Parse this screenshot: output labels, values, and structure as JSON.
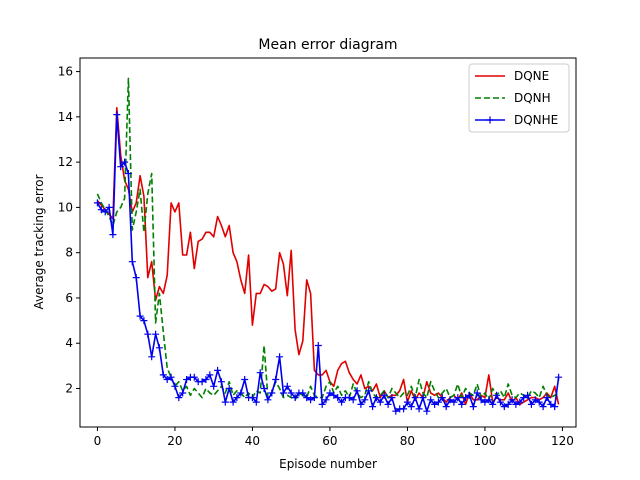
{
  "chart_data": {
    "type": "line",
    "title": "Mean error diagram",
    "xlabel": "Episode number",
    "ylabel": "Average tracking error",
    "xlim": [
      -4.5,
      123.5
    ],
    "ylim": [
      0.3,
      16.6
    ],
    "xticks": [
      0,
      20,
      40,
      60,
      80,
      100,
      120
    ],
    "yticks": [
      2,
      4,
      6,
      8,
      10,
      12,
      14,
      16
    ],
    "grid": false,
    "legend_position": "top-right",
    "series": [
      {
        "name": "DQNE",
        "color": "#e00000",
        "style": "solid",
        "marker": "none",
        "x": [
          0,
          1,
          2,
          3,
          4,
          5,
          6,
          7,
          8,
          9,
          10,
          11,
          12,
          13,
          14,
          15,
          16,
          17,
          18,
          19,
          20,
          21,
          22,
          23,
          24,
          25,
          26,
          27,
          28,
          29,
          30,
          31,
          32,
          33,
          34,
          35,
          36,
          37,
          38,
          39,
          40,
          41,
          42,
          43,
          44,
          45,
          46,
          47,
          48,
          49,
          50,
          51,
          52,
          53,
          54,
          55,
          56,
          57,
          58,
          59,
          60,
          61,
          62,
          63,
          64,
          65,
          66,
          67,
          68,
          69,
          70,
          71,
          72,
          73,
          74,
          75,
          76,
          77,
          78,
          79,
          80,
          81,
          82,
          83,
          84,
          85,
          86,
          87,
          88,
          89,
          90,
          91,
          92,
          93,
          94,
          95,
          96,
          97,
          98,
          99,
          100,
          101,
          102,
          103,
          104,
          105,
          106,
          107,
          108,
          109,
          110,
          111,
          112,
          113,
          114,
          115,
          116,
          117,
          118,
          119
        ],
        "y": [
          10.3,
          10.1,
          9.9,
          9.7,
          9.5,
          14.4,
          12.3,
          11.2,
          10.8,
          9.8,
          10.2,
          11.4,
          10.5,
          6.9,
          7.6,
          5.9,
          6.5,
          6.2,
          7.0,
          10.2,
          9.8,
          10.2,
          7.9,
          7.9,
          8.9,
          7.3,
          8.5,
          8.6,
          8.9,
          8.9,
          8.7,
          9.6,
          9.2,
          8.7,
          9.2,
          8.0,
          7.6,
          6.8,
          6.2,
          7.9,
          4.8,
          6.2,
          6.2,
          6.6,
          6.5,
          6.3,
          6.4,
          8.0,
          7.5,
          6.1,
          8.1,
          4.6,
          3.5,
          4.1,
          6.8,
          6.2,
          2.8,
          2.6,
          2.6,
          2.8,
          2.3,
          2.1,
          2.8,
          3.1,
          3.2,
          2.7,
          2.4,
          2.2,
          2.6,
          2.0,
          2.1,
          1.9,
          2.2,
          1.6,
          1.9,
          1.6,
          1.7,
          1.7,
          1.9,
          2.4,
          1.4,
          1.9,
          1.5,
          1.8,
          1.6,
          2.3,
          1.8,
          1.7,
          1.8,
          1.6,
          1.4,
          1.6,
          1.7,
          1.5,
          1.8,
          1.3,
          1.8,
          1.5,
          1.5,
          1.7,
          1.6,
          2.6,
          1.4,
          1.6,
          1.5,
          1.5,
          1.8,
          1.4,
          1.6,
          1.3,
          1.4,
          1.5,
          1.6,
          1.6,
          1.5,
          1.6,
          1.8,
          1.6,
          2.1,
          1.3
        ]
      },
      {
        "name": "DQNH",
        "color": "#008000",
        "style": "dashed",
        "marker": "none",
        "x": [
          0,
          1,
          2,
          3,
          4,
          5,
          6,
          7,
          8,
          9,
          10,
          11,
          12,
          13,
          14,
          15,
          16,
          17,
          18,
          19,
          20,
          21,
          22,
          23,
          24,
          25,
          26,
          27,
          28,
          29,
          30,
          31,
          32,
          33,
          34,
          35,
          36,
          37,
          38,
          39,
          40,
          41,
          42,
          43,
          44,
          45,
          46,
          47,
          48,
          49,
          50,
          51,
          52,
          53,
          54,
          55,
          56,
          57,
          58,
          59,
          60,
          61,
          62,
          63,
          64,
          65,
          66,
          67,
          68,
          69,
          70,
          71,
          72,
          73,
          74,
          75,
          76,
          77,
          78,
          79,
          80,
          81,
          82,
          83,
          84,
          85,
          86,
          87,
          88,
          89,
          90,
          91,
          92,
          93,
          94,
          95,
          96,
          97,
          98,
          99,
          100,
          101,
          102,
          103,
          104,
          105,
          106,
          107,
          108,
          109,
          110,
          111,
          112,
          113,
          114,
          115,
          116,
          117,
          118,
          119
        ],
        "y": [
          10.6,
          10.2,
          9.9,
          9.6,
          9.2,
          9.8,
          10.0,
          10.4,
          15.7,
          9.0,
          9.8,
          10.8,
          8.9,
          10.6,
          11.5,
          4.9,
          6.2,
          4.5,
          2.9,
          2.5,
          2.1,
          2.3,
          1.9,
          2.1,
          1.7,
          2.0,
          1.8,
          1.6,
          2.0,
          1.8,
          1.7,
          1.9,
          2.1,
          1.8,
          2.3,
          1.7,
          1.9,
          1.8,
          1.6,
          1.8,
          1.6,
          1.9,
          1.8,
          3.9,
          1.6,
          1.8,
          2.3,
          2.0,
          1.6,
          1.7,
          1.6,
          1.5,
          1.8,
          1.7,
          1.6,
          2.1,
          1.7,
          1.6,
          1.6,
          2.1,
          2.3,
          1.8,
          2.1,
          1.7,
          1.9,
          1.6,
          2.2,
          1.8,
          1.6,
          1.7,
          2.3,
          1.8,
          1.6,
          1.7,
          1.9,
          1.6,
          2.0,
          1.8,
          1.6,
          1.8,
          1.7,
          2.1,
          1.6,
          2.4,
          1.8,
          1.6,
          2.3,
          1.9,
          1.6,
          1.8,
          2.0,
          1.6,
          1.7,
          2.2,
          1.6,
          2.0,
          1.8,
          1.7,
          2.2,
          1.6,
          1.8,
          1.5,
          2.0,
          1.7,
          1.9,
          1.6,
          2.2,
          1.7,
          1.6,
          1.8,
          1.7,
          1.6,
          1.9,
          1.8,
          1.6,
          2.1,
          1.7,
          1.6,
          1.7,
          1.8
        ]
      },
      {
        "name": "DQNHE",
        "color": "#0000ee",
        "style": "solid",
        "marker": "+",
        "x": [
          0,
          1,
          2,
          3,
          4,
          5,
          6,
          7,
          8,
          9,
          10,
          11,
          12,
          13,
          14,
          15,
          16,
          17,
          18,
          19,
          20,
          21,
          22,
          23,
          24,
          25,
          26,
          27,
          28,
          29,
          30,
          31,
          32,
          33,
          34,
          35,
          36,
          37,
          38,
          39,
          40,
          41,
          42,
          43,
          44,
          45,
          46,
          47,
          48,
          49,
          50,
          51,
          52,
          53,
          54,
          55,
          56,
          57,
          58,
          59,
          60,
          61,
          62,
          63,
          64,
          65,
          66,
          67,
          68,
          69,
          70,
          71,
          72,
          73,
          74,
          75,
          76,
          77,
          78,
          79,
          80,
          81,
          82,
          83,
          84,
          85,
          86,
          87,
          88,
          89,
          90,
          91,
          92,
          93,
          94,
          95,
          96,
          97,
          98,
          99,
          100,
          101,
          102,
          103,
          104,
          105,
          106,
          107,
          108,
          109,
          110,
          111,
          112,
          113,
          114,
          115,
          116,
          117,
          118,
          119
        ],
        "y": [
          10.2,
          9.9,
          9.8,
          10.0,
          8.8,
          14.1,
          11.8,
          12.0,
          11.5,
          7.6,
          6.9,
          5.2,
          5.0,
          4.4,
          3.4,
          4.4,
          3.8,
          2.6,
          2.4,
          2.5,
          2.1,
          1.6,
          1.8,
          2.4,
          2.5,
          2.5,
          2.3,
          2.3,
          2.4,
          2.6,
          2.1,
          2.8,
          2.3,
          1.4,
          2.0,
          1.4,
          1.6,
          1.8,
          2.4,
          1.6,
          1.6,
          1.4,
          2.7,
          2.0,
          1.5,
          1.8,
          2.4,
          3.4,
          1.8,
          2.1,
          1.8,
          1.6,
          1.8,
          1.8,
          1.6,
          1.5,
          1.6,
          3.9,
          1.3,
          1.5,
          1.8,
          1.7,
          1.6,
          1.4,
          1.6,
          1.6,
          1.5,
          1.9,
          1.3,
          1.5,
          1.9,
          1.2,
          1.6,
          1.4,
          1.7,
          1.3,
          1.6,
          1.0,
          1.1,
          1.1,
          1.4,
          1.2,
          1.6,
          1.1,
          1.6,
          1.0,
          1.5,
          1.3,
          1.4,
          1.6,
          1.2,
          1.5,
          1.4,
          1.6,
          1.3,
          1.6,
          1.7,
          1.2,
          1.8,
          1.5,
          1.4,
          1.5,
          1.3,
          1.7,
          1.4,
          1.2,
          1.3,
          1.5,
          1.3,
          1.4,
          1.6,
          1.7,
          1.3,
          1.5,
          1.4,
          1.2,
          1.6,
          1.3,
          1.2,
          2.5
        ]
      }
    ]
  }
}
